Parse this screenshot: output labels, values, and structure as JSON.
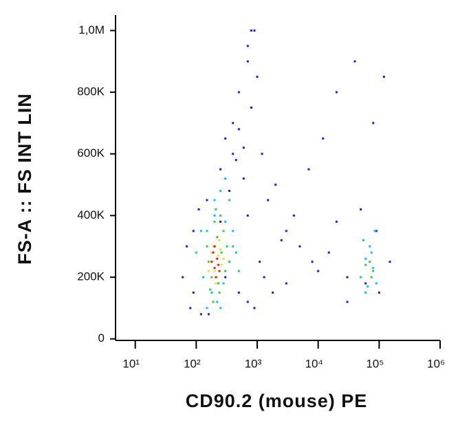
{
  "chart_data": {
    "type": "scatter",
    "x_label": "CD90.2 (mouse) PE",
    "y_label": "FS-A :: FS INT LIN",
    "x_log": true,
    "xlim": [
      5,
      1000000
    ],
    "xticks": [
      {
        "value": 10,
        "label": "10¹"
      },
      {
        "value": 100,
        "label": "10²"
      },
      {
        "value": 1000,
        "label": "10³"
      },
      {
        "value": 10000,
        "label": "10⁴"
      },
      {
        "value": 100000,
        "label": "10⁵"
      },
      {
        "value": 1000000,
        "label": "10⁶"
      }
    ],
    "ylim": [
      -5000,
      1050000
    ],
    "yticks": [
      0,
      {
        "value": 200000,
        "label": "200K"
      },
      {
        "value": 400000,
        "label": "400K"
      },
      {
        "value": 600000,
        "label": "600K"
      },
      {
        "value": 800000,
        "label": "800K"
      },
      {
        "value": 1000000,
        "label": "1,0M"
      }
    ],
    "series": [
      {
        "color": "#1a1ae6",
        "x": [
          80,
          120,
          150,
          250,
          300,
          400,
          500,
          700,
          900,
          1200,
          2000,
          3000,
          5000,
          8000,
          15000,
          30000,
          60000,
          100000,
          150000,
          250,
          350,
          450,
          600,
          800,
          1000,
          1500,
          2500,
          4000,
          7000,
          12000,
          20000,
          40000,
          80000,
          120000,
          200,
          300,
          500,
          700,
          900,
          1100,
          60,
          70,
          90,
          110,
          1300,
          1800,
          600,
          700,
          400,
          500,
          20000,
          50000,
          90000,
          30000,
          3000,
          10000,
          700,
          800,
          160,
          90
        ],
        "y": [
          100000,
          80000,
          450000,
          550000,
          650000,
          700000,
          800000,
          900000,
          1000000,
          600000,
          500000,
          350000,
          300000,
          250000,
          280000,
          200000,
          180000,
          150000,
          250000,
          380000,
          480000,
          580000,
          620000,
          750000,
          850000,
          450000,
          320000,
          400000,
          550000,
          650000,
          800000,
          900000,
          700000,
          850000,
          300000,
          200000,
          150000,
          120000,
          100000,
          250000,
          200000,
          300000,
          350000,
          420000,
          200000,
          150000,
          520000,
          400000,
          600000,
          680000,
          380000,
          420000,
          350000,
          120000,
          180000,
          220000,
          950000,
          1000000,
          80000,
          150000
        ]
      },
      {
        "color": "#00c8e8",
        "x": [
          100,
          130,
          180,
          220,
          280,
          350,
          400,
          150,
          200,
          300,
          250,
          300,
          350,
          400,
          50000,
          60000,
          70000,
          80000,
          90000,
          55000,
          65000,
          75000,
          85000,
          60000,
          150,
          120,
          500,
          250,
          200,
          450
        ],
        "y": [
          280000,
          200000,
          150000,
          120000,
          180000,
          250000,
          300000,
          350000,
          400000,
          380000,
          480000,
          520000,
          450000,
          350000,
          200000,
          260000,
          300000,
          230000,
          180000,
          320000,
          170000,
          280000,
          350000,
          150000,
          100000,
          350000,
          220000,
          100000,
          450000,
          280000
        ]
      },
      {
        "color": "#30d040",
        "x": [
          150,
          180,
          220,
          260,
          300,
          200,
          170,
          240,
          280,
          320,
          210,
          190,
          70000,
          80000,
          75000,
          60000,
          250,
          160,
          230,
          350
        ],
        "y": [
          300000,
          200000,
          330000,
          280000,
          220000,
          380000,
          160000,
          150000,
          350000,
          300000,
          420000,
          120000,
          250000,
          220000,
          200000,
          240000,
          400000,
          250000,
          180000,
          250000
        ]
      },
      {
        "color": "#f0e020",
        "x": [
          170,
          200,
          230,
          260,
          190,
          210,
          240,
          180,
          220,
          250,
          160,
          280
        ],
        "y": [
          250000,
          220000,
          270000,
          240000,
          300000,
          180000,
          320000,
          280000,
          200000,
          290000,
          220000,
          260000
        ]
      },
      {
        "color": "#e82010",
        "x": [
          180,
          200,
          220,
          240,
          210,
          190,
          230,
          200
        ],
        "y": [
          250000,
          230000,
          260000,
          220000,
          200000,
          280000,
          240000,
          300000
        ]
      }
    ]
  }
}
